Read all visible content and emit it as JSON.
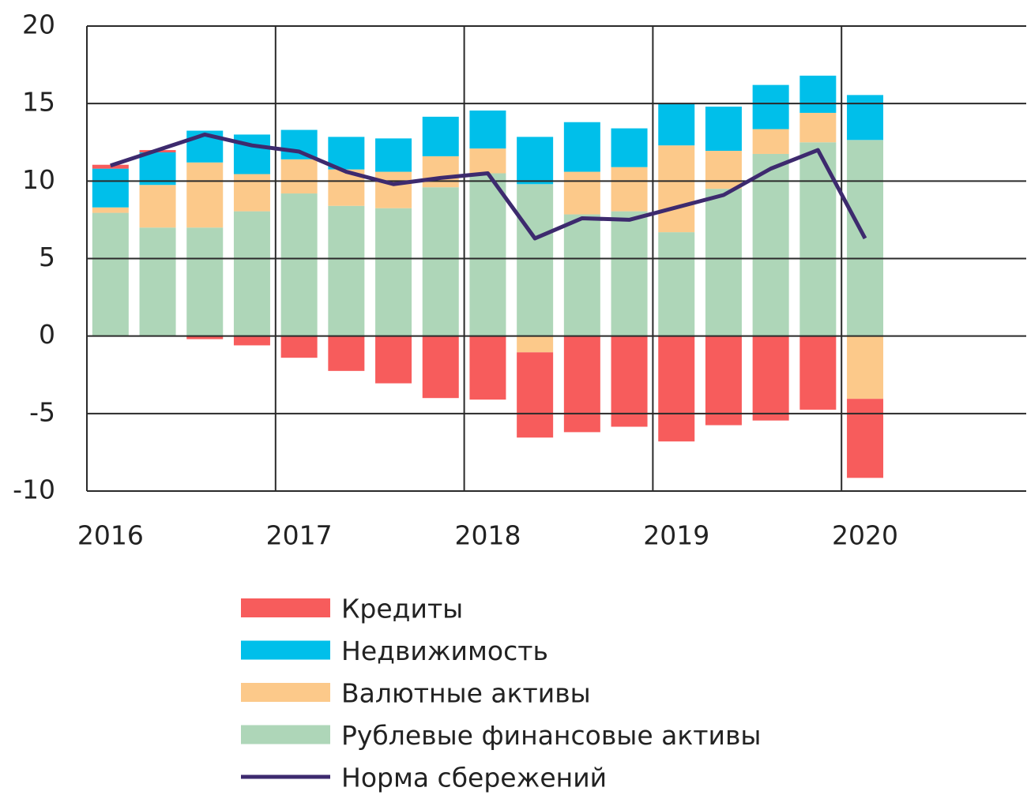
{
  "chart_data": {
    "type": "bar",
    "stacked": true,
    "categories": [
      "2016",
      null,
      null,
      null,
      "2017",
      null,
      null,
      null,
      "2018",
      null,
      null,
      null,
      "2019",
      null,
      null,
      null,
      "2020"
    ],
    "series": [
      {
        "name": "Кредиты",
        "color": "#f75c5c",
        "values": [
          0.25,
          0.15,
          -0.2,
          -0.6,
          -1.4,
          -2.25,
          -3.05,
          -4.0,
          -4.1,
          -5.5,
          -6.2,
          -5.85,
          -6.8,
          -5.75,
          -5.45,
          -4.75,
          -5.1
        ]
      },
      {
        "name": "Недвижимость",
        "color": "#00bfea",
        "values": [
          2.5,
          2.1,
          2.05,
          2.55,
          1.9,
          2.1,
          2.15,
          2.55,
          2.45,
          3.05,
          3.2,
          2.5,
          2.7,
          2.85,
          2.85,
          2.4,
          2.9
        ]
      },
      {
        "name": "Валютные активы",
        "color": "#fcc98a",
        "values": [
          0.35,
          2.75,
          4.2,
          2.4,
          2.2,
          2.35,
          2.35,
          2.0,
          1.6,
          -1.05,
          2.75,
          2.85,
          5.6,
          2.45,
          1.6,
          1.9,
          -4.05
        ]
      },
      {
        "name": "Рублевые финансовые активы",
        "color": "#aed6b8",
        "values": [
          7.95,
          7.0,
          7.0,
          8.05,
          9.2,
          8.4,
          8.25,
          9.6,
          10.5,
          9.8,
          7.85,
          8.05,
          6.7,
          9.5,
          11.75,
          12.5,
          12.65
        ]
      },
      {
        "name": "Норма сбережений",
        "color": "#3d2a6e",
        "type": "line",
        "values": [
          11.0,
          12.0,
          13.0,
          12.3,
          11.9,
          10.6,
          9.8,
          10.2,
          10.5,
          6.3,
          7.6,
          7.5,
          8.3,
          9.1,
          10.8,
          12.0,
          6.3
        ]
      }
    ],
    "ylim": [
      -10,
      20
    ],
    "yticks": [
      20,
      15,
      10,
      5,
      0,
      -5,
      -10
    ],
    "grid": true
  }
}
